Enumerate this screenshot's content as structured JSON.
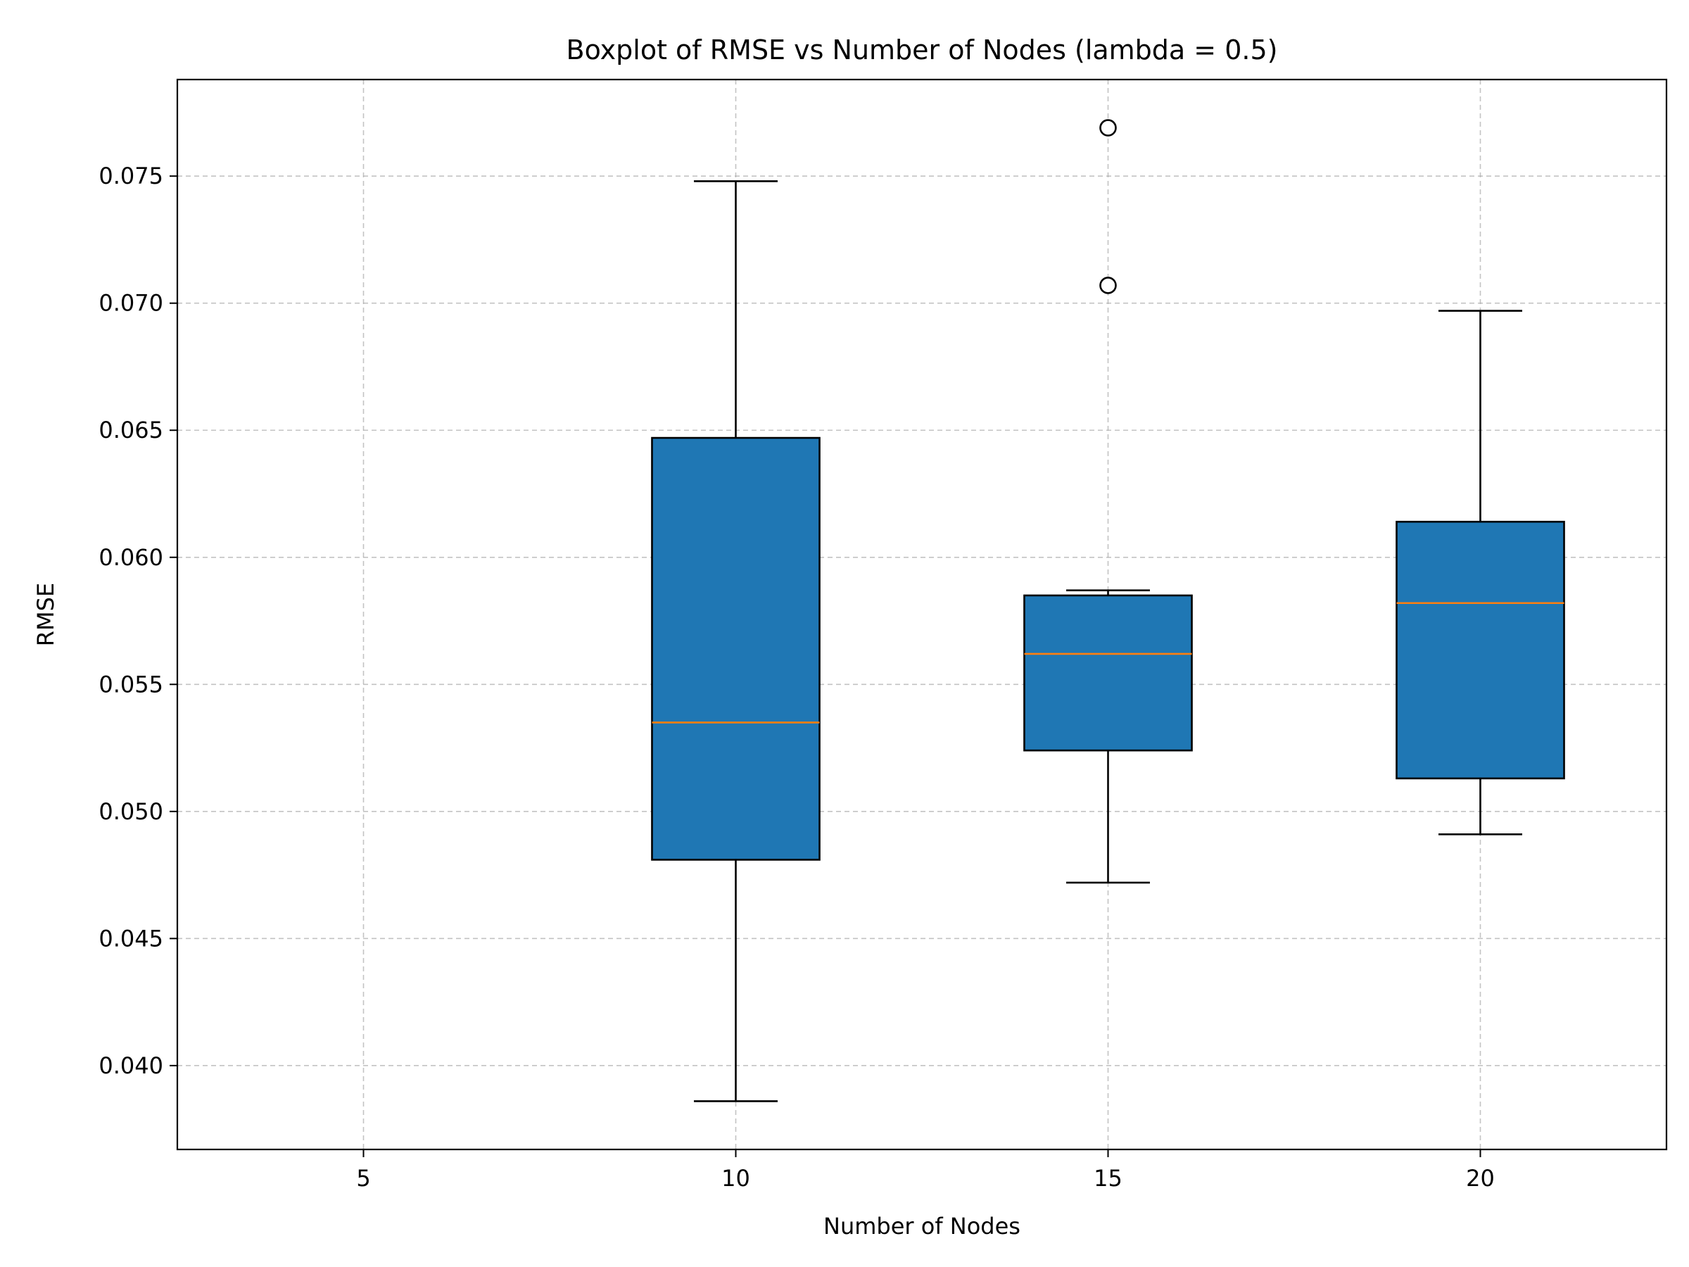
{
  "chart_data": {
    "type": "boxplot",
    "title": "Boxplot of RMSE vs Number of Nodes (lambda = 0.5)",
    "xlabel": "Number of Nodes",
    "ylabel": "RMSE",
    "xlim": [
      2.5,
      22.5
    ],
    "ylim": [
      0.0367,
      0.0788
    ],
    "xticks": [
      5,
      10,
      15,
      20
    ],
    "xtick_labels": [
      "5",
      "10",
      "15",
      "20"
    ],
    "yticks": [
      0.04,
      0.045,
      0.05,
      0.055,
      0.06,
      0.065,
      0.07,
      0.075
    ],
    "ytick_labels": [
      "0.040",
      "0.045",
      "0.050",
      "0.055",
      "0.060",
      "0.065",
      "0.070",
      "0.075"
    ],
    "grid": true,
    "box_color": "#1f77b4",
    "median_color": "#ff7f0e",
    "boxes": [
      {
        "x": 10,
        "whisker_low": 0.0386,
        "q1": 0.0481,
        "median": 0.0535,
        "q3": 0.0647,
        "whisker_high": 0.0748,
        "fliers": []
      },
      {
        "x": 15,
        "whisker_low": 0.0472,
        "q1": 0.0524,
        "median": 0.0562,
        "q3": 0.0585,
        "whisker_high": 0.0587,
        "fliers": [
          0.0707,
          0.0769
        ]
      },
      {
        "x": 20,
        "whisker_low": 0.0491,
        "q1": 0.0513,
        "median": 0.0582,
        "q3": 0.0614,
        "whisker_high": 0.0697,
        "fliers": []
      }
    ]
  }
}
